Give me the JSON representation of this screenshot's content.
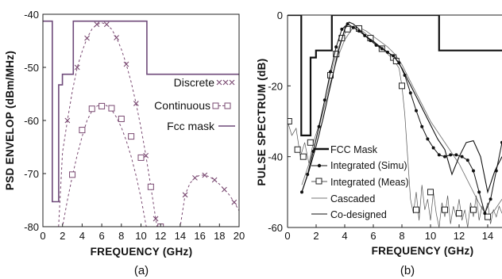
{
  "chart_data": [
    {
      "type": "line",
      "panel_label": "(a)",
      "xlabel": "FREQUENCY (GHz)",
      "ylabel": "PSD ENVELOP (dBm/MHz)",
      "xlim": [
        0,
        20
      ],
      "ylim": [
        -80,
        -40
      ],
      "xticks": [
        "0",
        "2",
        "4",
        "6",
        "8",
        "10",
        "12",
        "14",
        "16",
        "18",
        "20"
      ],
      "yticks": [
        "-40",
        "-50",
        "-60",
        "-70",
        "-80"
      ],
      "grid": false,
      "legend_position": "right",
      "series": [
        {
          "name": "Discrete",
          "marker": "x",
          "style": "dashed",
          "color": "#7a4a72",
          "x": [
            1.6,
            2,
            2.5,
            3,
            3.5,
            4,
            4.5,
            5,
            5.5,
            6,
            6.5,
            7,
            7.5,
            8,
            8.5,
            9,
            9.5,
            10,
            10.5,
            11,
            11.5,
            12,
            12.5,
            13,
            13.5,
            14,
            14.5,
            15,
            15.5,
            16,
            16.5,
            17,
            17.5,
            18,
            18.5,
            19,
            19.5,
            20
          ],
          "y": [
            -80,
            -66,
            -60,
            -54.5,
            -50,
            -47,
            -44.5,
            -42.8,
            -41.9,
            -41.6,
            -41.9,
            -42.8,
            -44.4,
            -46.6,
            -49.4,
            -52.8,
            -56.8,
            -61.4,
            -66.6,
            -72.4,
            -78.5,
            -84,
            -84,
            -84,
            -84,
            -80,
            -74,
            -71.8,
            -70.8,
            -70.3,
            -70.3,
            -70.6,
            -71.2,
            -72,
            -73,
            -74,
            -75.4,
            -77
          ]
        },
        {
          "name": "Continuous",
          "marker": "square",
          "style": "dashed",
          "color": "#7a4a72",
          "x": [
            1.8,
            2,
            2.5,
            3,
            3.5,
            4,
            4.5,
            5,
            5.5,
            6,
            6.5,
            7,
            7.5,
            8,
            8.5,
            9,
            9.5,
            10,
            10.5,
            11,
            11.5,
            12
          ],
          "y": [
            -84,
            -80,
            -75,
            -70.5,
            -66.5,
            -63,
            -60,
            -58.2,
            -57.3,
            -57,
            -57.2,
            -58,
            -59.4,
            -61.3,
            -63.8,
            -66.8,
            -70.4,
            -74.6,
            -79.6,
            -84,
            -84,
            -84
          ],
          "marker_x": [
            3,
            4,
            5,
            6,
            7,
            8,
            9,
            10,
            11,
            12
          ],
          "marker_y": [
            -70.2,
            -61.8,
            -57.8,
            -57.3,
            -57.7,
            -59.7,
            -63,
            -67,
            -72.5,
            -80
          ]
        },
        {
          "name": "Fcc mask",
          "style": "solid",
          "color": "#6f4a7a",
          "x": [
            0,
            0.96,
            0.96,
            1.61,
            1.61,
            1.99,
            1.99,
            3.1,
            3.1,
            10.6,
            10.6,
            20
          ],
          "y": [
            -41.3,
            -41.3,
            -75.3,
            -75.3,
            -53.3,
            -53.3,
            -51.3,
            -51.3,
            -41.3,
            -41.3,
            -51.3,
            -51.3
          ]
        }
      ]
    },
    {
      "type": "line",
      "panel_label": "(b)",
      "xlabel": "FREQUENCY (GHz)",
      "ylabel": "PULSE SPECTRUM (dB)",
      "xlim": [
        0,
        15
      ],
      "ylim": [
        -60,
        0
      ],
      "xticks": [
        "0",
        "2",
        "4",
        "6",
        "8",
        "10",
        "12",
        "14"
      ],
      "yticks": [
        "0",
        "-20",
        "-40",
        "-60"
      ],
      "grid": false,
      "legend_position": "bottom-left",
      "series": [
        {
          "name": "FCC Mask",
          "style": "solid-thick",
          "color": "#111111",
          "x": [
            0,
            0.96,
            0.96,
            1.61,
            1.61,
            1.99,
            1.99,
            3.1,
            3.1,
            10.6,
            10.6,
            15
          ],
          "y": [
            0,
            0,
            -34,
            -34,
            -12,
            -12,
            -10,
            -10,
            0,
            0,
            -10,
            -10
          ]
        },
        {
          "name": "Integrated (Simu)",
          "marker": "dot",
          "style": "solid",
          "color": "#111111",
          "x": [
            1,
            1.4,
            1.8,
            2.2,
            2.6,
            3,
            3.4,
            3.8,
            4.2,
            4.6,
            5,
            5.4,
            5.8,
            6.2,
            6.6,
            7,
            7.4,
            7.8,
            8.2,
            8.6,
            9,
            9.4,
            9.8,
            10.2,
            10.6,
            11,
            11.4,
            11.8,
            12.2,
            12.6,
            13,
            13.4,
            13.8,
            14.2,
            14.6,
            15
          ],
          "y": [
            -50,
            -45,
            -38.5,
            -31.5,
            -24,
            -16,
            -9,
            -4,
            -2.5,
            -3.5,
            -4.5,
            -5.8,
            -7.2,
            -8.5,
            -9.5,
            -10.5,
            -11.5,
            -13.5,
            -17,
            -22,
            -27,
            -31.5,
            -35,
            -37.5,
            -39.5,
            -40,
            -39.5,
            -39.5,
            -40,
            -41,
            -44,
            -50,
            -56,
            -52,
            -44,
            -36
          ]
        },
        {
          "name": "Integrated (Meas)",
          "marker": "square",
          "style": "solid",
          "color": "#222222",
          "x": [
            0,
            0.3,
            0.6,
            0.9,
            1.2,
            1.5,
            1.8,
            2.2,
            2.6,
            3,
            3.4,
            3.8,
            4.2,
            4.6,
            5,
            5.4,
            5.8,
            6.2,
            6.6,
            7,
            7.4,
            7.8,
            8,
            8.2,
            8.4,
            8.6,
            8.8,
            9,
            9.2,
            9.4,
            9.6,
            9.8,
            10,
            10.2,
            10.4,
            10.6,
            10.8,
            11,
            11.2,
            11.4,
            11.6,
            11.8,
            12,
            12.2,
            12.4,
            12.6,
            12.8,
            13,
            13.2,
            13.4,
            13.6,
            13.8,
            14,
            14.2,
            14.4,
            14.6,
            14.8,
            15
          ],
          "y": [
            -30,
            -34,
            -32,
            -40,
            -36,
            -42,
            -36,
            -31,
            -24,
            -17,
            -11,
            -6.5,
            -4,
            -3.2,
            -3.8,
            -5,
            -6.5,
            -8,
            -9.5,
            -11,
            -12.5,
            -15,
            -20,
            -28,
            -40,
            -52,
            -56,
            -50,
            -58,
            -48,
            -55,
            -52,
            -58,
            -50,
            -56,
            -60,
            -53,
            -57,
            -51,
            -59,
            -54,
            -57,
            -52,
            -58,
            -55,
            -60,
            -53,
            -57,
            -51,
            -58,
            -54,
            -56,
            -53,
            -59,
            -55,
            -57,
            -54,
            -56
          ],
          "marker_x": [
            0.1,
            0.7,
            1.1,
            1.6,
            3,
            3.4,
            3.8,
            4.2,
            5,
            5.8,
            6.6,
            7.4,
            7.6,
            8,
            9,
            10,
            11,
            12,
            13,
            14
          ],
          "marker_y": [
            -30,
            -38,
            -40,
            -36,
            -17,
            -11,
            -6.5,
            -4,
            -3.8,
            -6.5,
            -9.5,
            -12,
            -13,
            -20,
            -55,
            -50,
            -55,
            -56,
            -55,
            -57
          ]
        },
        {
          "name": "Cascaded",
          "style": "solid-thin",
          "color": "#777777",
          "x": [
            1,
            1.5,
            2,
            2.5,
            3,
            3.5,
            4,
            4.5,
            5,
            5.5,
            6,
            6.5,
            7,
            7.5,
            8,
            8.5,
            9,
            9.5,
            10,
            10.5,
            11,
            11.5,
            12,
            12.5,
            13,
            13.5,
            14,
            14.5,
            15
          ],
          "y": [
            -48,
            -42,
            -35,
            -27,
            -19,
            -12,
            -7,
            -4,
            -3.5,
            -4.5,
            -6,
            -7.5,
            -9,
            -11,
            -14,
            -18,
            -22,
            -26,
            -30,
            -33,
            -36,
            -39,
            -42,
            -46,
            -50,
            -54,
            -57,
            -55,
            -52
          ]
        },
        {
          "name": "Co-designed",
          "style": "solid",
          "color": "#111111",
          "x": [
            1,
            1.5,
            2,
            2.5,
            3,
            3.5,
            4,
            4.3,
            4.6,
            5,
            5.5,
            6,
            6.5,
            7,
            7.5,
            8,
            8.5,
            9,
            9.5,
            10,
            10.5,
            11,
            11.5,
            12,
            12.5,
            13,
            13.5,
            14,
            14.5,
            15
          ],
          "y": [
            -50,
            -44,
            -37,
            -29,
            -20,
            -11,
            -4,
            -2,
            -2.5,
            -4,
            -6,
            -7.5,
            -9,
            -10.5,
            -12,
            -15,
            -19,
            -23,
            -27,
            -31,
            -35,
            -38,
            -45,
            -40,
            -36,
            -35.5,
            -40,
            -50,
            -44,
            -40
          ]
        }
      ]
    }
  ]
}
